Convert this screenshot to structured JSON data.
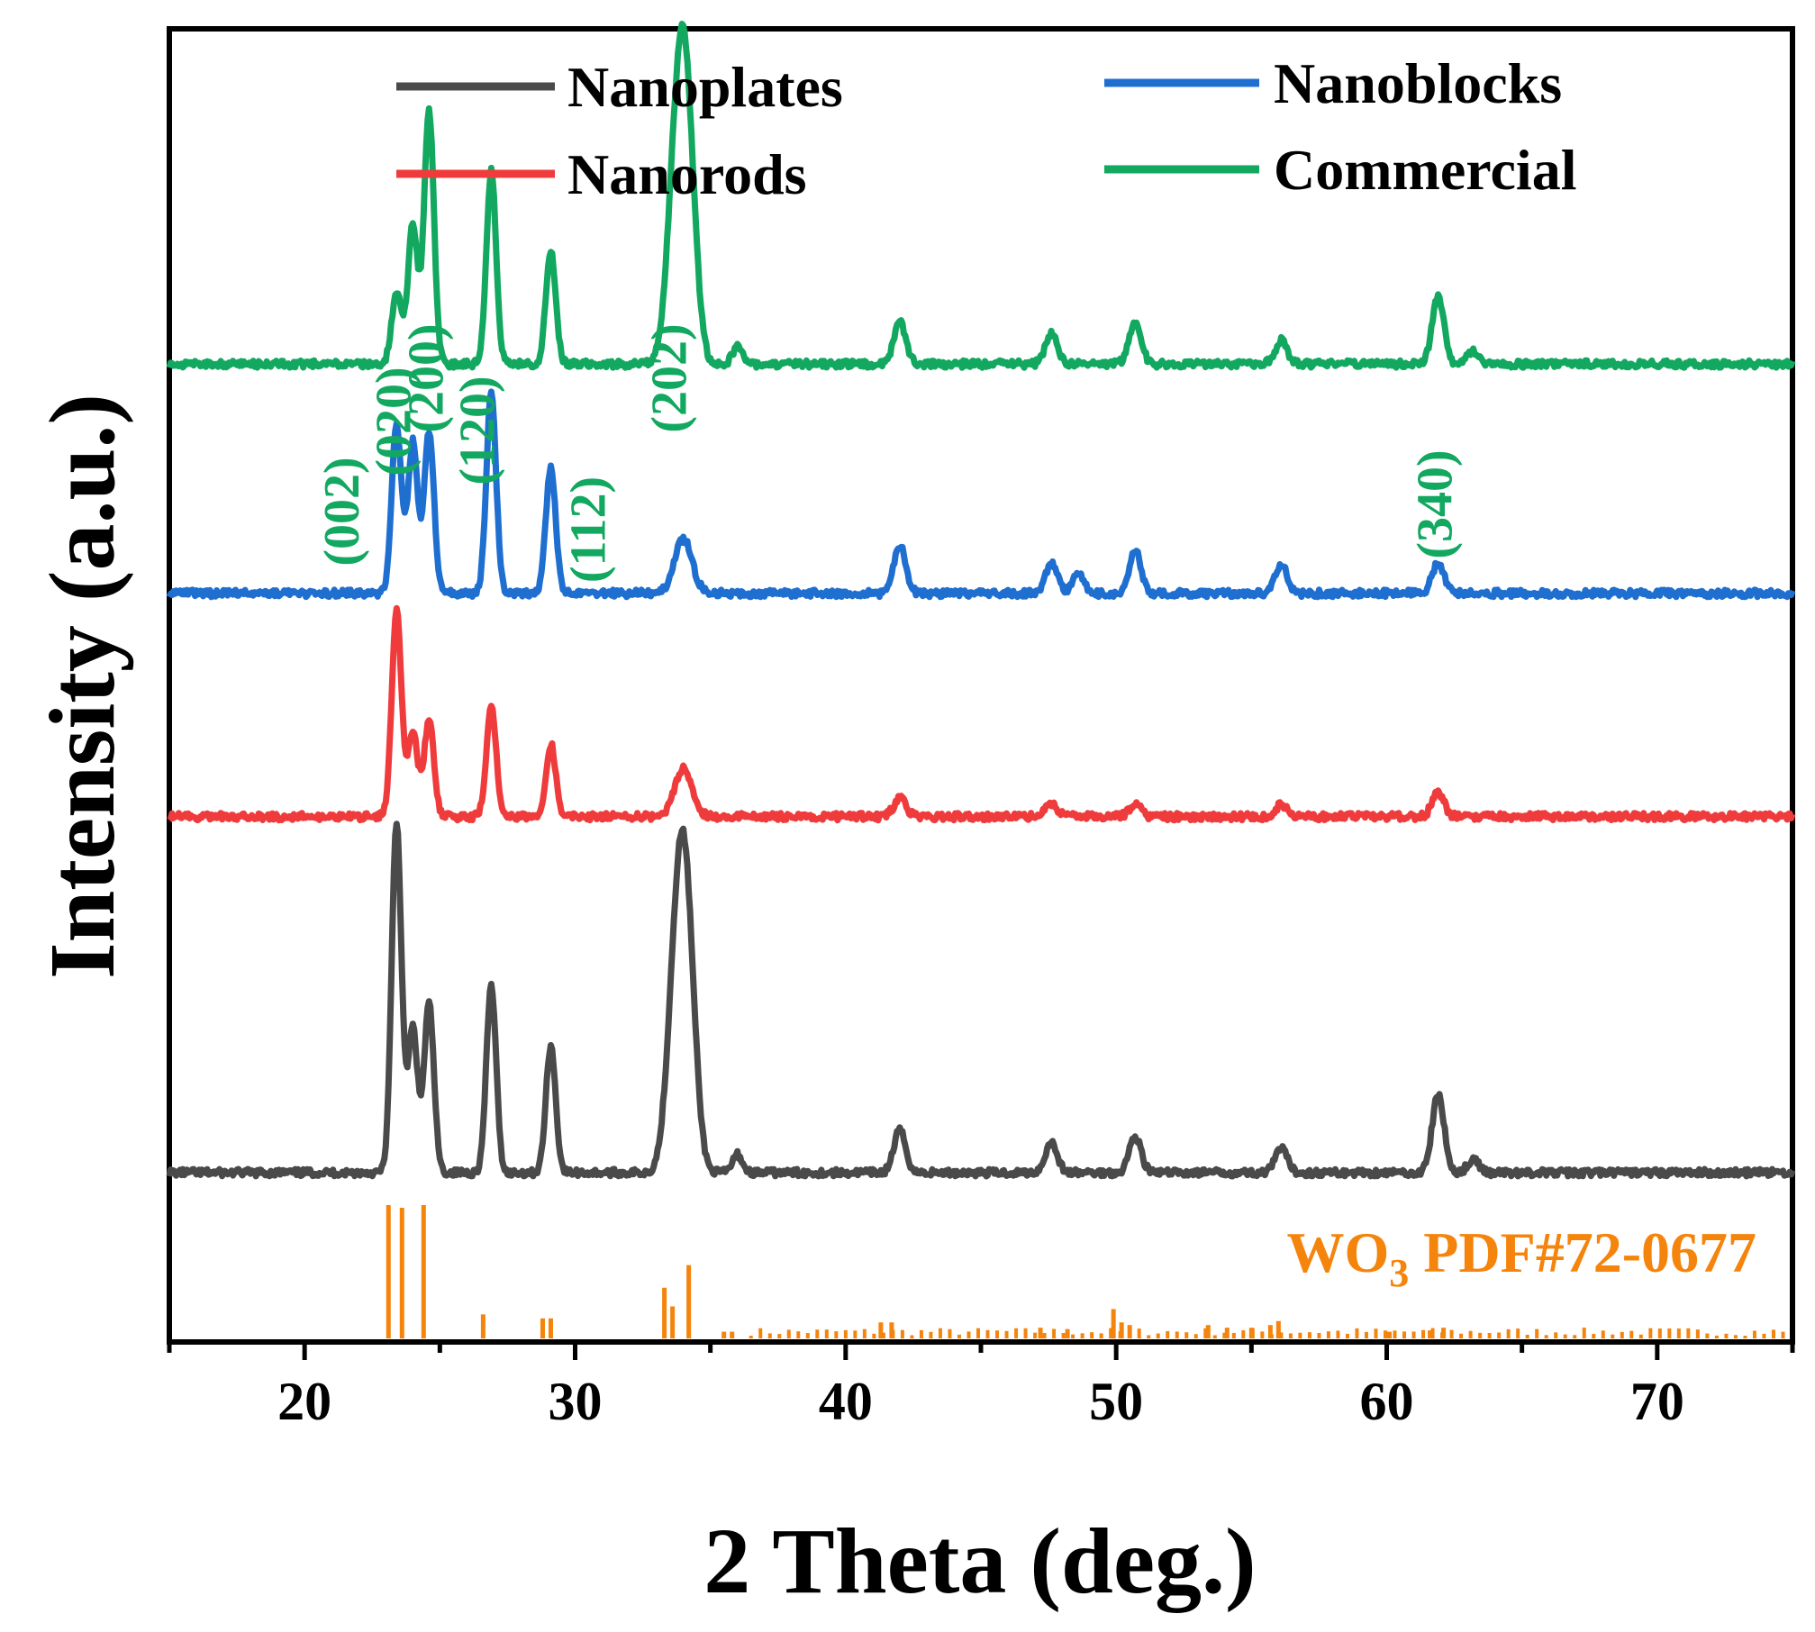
{
  "chart_data": {
    "type": "line",
    "xlabel": "2 Theta (deg.)",
    "ylabel": "Intensity (a.u.)",
    "xlim": [
      15,
      75
    ],
    "xticks": [
      20,
      30,
      40,
      50,
      60,
      70
    ],
    "y_axis_ticks": false,
    "grid": false,
    "legend_position": "top",
    "series": [
      {
        "name": "Nanoplates",
        "color": "#4a4a4a",
        "baseline": 0.0,
        "peaks": [
          {
            "x": 23.4,
            "h": 0.58
          },
          {
            "x": 24.0,
            "h": 0.24
          },
          {
            "x": 24.6,
            "h": 0.28
          },
          {
            "x": 26.9,
            "h": 0.31
          },
          {
            "x": 29.1,
            "h": 0.21
          },
          {
            "x": 33.7,
            "h": 0.27
          },
          {
            "x": 34.1,
            "h": 0.41
          },
          {
            "x": 36.0,
            "h": 0.03
          },
          {
            "x": 42.0,
            "h": 0.07
          },
          {
            "x": 47.6,
            "h": 0.05
          },
          {
            "x": 50.7,
            "h": 0.06
          },
          {
            "x": 56.1,
            "h": 0.04
          },
          {
            "x": 61.9,
            "h": 0.13
          },
          {
            "x": 63.2,
            "h": 0.02
          }
        ]
      },
      {
        "name": "Nanorods",
        "color": "#ef3b3b",
        "baseline": 0.59,
        "peaks": [
          {
            "x": 23.4,
            "h": 0.34
          },
          {
            "x": 24.0,
            "h": 0.14
          },
          {
            "x": 24.6,
            "h": 0.16
          },
          {
            "x": 26.9,
            "h": 0.18
          },
          {
            "x": 29.1,
            "h": 0.12
          },
          {
            "x": 34.0,
            "h": 0.08
          },
          {
            "x": 42.0,
            "h": 0.03
          },
          {
            "x": 47.6,
            "h": 0.02
          },
          {
            "x": 50.7,
            "h": 0.02
          },
          {
            "x": 56.1,
            "h": 0.02
          },
          {
            "x": 61.9,
            "h": 0.04
          }
        ]
      },
      {
        "name": "Nanoblocks",
        "color": "#1f6fd1",
        "baseline": 0.96,
        "peaks": [
          {
            "x": 23.4,
            "h": 0.28
          },
          {
            "x": 24.0,
            "h": 0.25
          },
          {
            "x": 24.6,
            "h": 0.27
          },
          {
            "x": 26.9,
            "h": 0.33
          },
          {
            "x": 29.1,
            "h": 0.21
          },
          {
            "x": 34.0,
            "h": 0.09
          },
          {
            "x": 42.0,
            "h": 0.08
          },
          {
            "x": 47.6,
            "h": 0.05
          },
          {
            "x": 48.6,
            "h": 0.03
          },
          {
            "x": 50.7,
            "h": 0.07
          },
          {
            "x": 56.1,
            "h": 0.05
          },
          {
            "x": 61.9,
            "h": 0.05
          }
        ]
      },
      {
        "name": "Commercial",
        "color": "#12a860",
        "baseline": 1.34,
        "peaks": [
          {
            "x": 23.4,
            "h": 0.12
          },
          {
            "x": 24.0,
            "h": 0.23
          },
          {
            "x": 24.6,
            "h": 0.42
          },
          {
            "x": 26.9,
            "h": 0.32
          },
          {
            "x": 29.1,
            "h": 0.19
          },
          {
            "x": 33.7,
            "h": 0.26
          },
          {
            "x": 34.1,
            "h": 0.41
          },
          {
            "x": 36.0,
            "h": 0.03
          },
          {
            "x": 42.0,
            "h": 0.07
          },
          {
            "x": 47.6,
            "h": 0.05
          },
          {
            "x": 50.7,
            "h": 0.07
          },
          {
            "x": 56.1,
            "h": 0.04
          },
          {
            "x": 61.9,
            "h": 0.11
          },
          {
            "x": 63.2,
            "h": 0.02
          }
        ]
      }
    ],
    "reference": {
      "label_main": "WO",
      "label_sub": "3",
      "label_tail": " PDF#72-0677",
      "color": "#f5840c",
      "lines": [
        {
          "x": 23.1,
          "h": 1.0
        },
        {
          "x": 23.6,
          "h": 0.98
        },
        {
          "x": 24.4,
          "h": 1.0
        },
        {
          "x": 26.6,
          "h": 0.18
        },
        {
          "x": 28.8,
          "h": 0.15
        },
        {
          "x": 29.1,
          "h": 0.15
        },
        {
          "x": 33.3,
          "h": 0.38
        },
        {
          "x": 33.6,
          "h": 0.24
        },
        {
          "x": 34.2,
          "h": 0.55
        },
        {
          "x": 35.5,
          "h": 0.05
        },
        {
          "x": 35.8,
          "h": 0.05
        },
        {
          "x": 41.3,
          "h": 0.12
        },
        {
          "x": 41.7,
          "h": 0.12
        },
        {
          "x": 47.2,
          "h": 0.08
        },
        {
          "x": 48.2,
          "h": 0.07
        },
        {
          "x": 49.9,
          "h": 0.22
        },
        {
          "x": 50.2,
          "h": 0.12
        },
        {
          "x": 50.5,
          "h": 0.1
        },
        {
          "x": 53.4,
          "h": 0.1
        },
        {
          "x": 54.1,
          "h": 0.08
        },
        {
          "x": 55.0,
          "h": 0.08
        },
        {
          "x": 55.7,
          "h": 0.1
        },
        {
          "x": 56.0,
          "h": 0.13
        },
        {
          "x": 60.1,
          "h": 0.05
        },
        {
          "x": 61.6,
          "h": 0.06
        },
        {
          "x": 62.1,
          "h": 0.08
        }
      ]
    },
    "annotations": [
      {
        "text": "(002)",
        "x": 22.0
      },
      {
        "text": "(020)",
        "x": 23.9
      },
      {
        "text": "(200)",
        "x": 25.1
      },
      {
        "text": "(120)",
        "x": 27.0
      },
      {
        "text": "(112)",
        "x": 31.1
      },
      {
        "text": "(202)",
        "x": 34.1
      },
      {
        "text": "(340)",
        "x": 62.4
      }
    ]
  }
}
